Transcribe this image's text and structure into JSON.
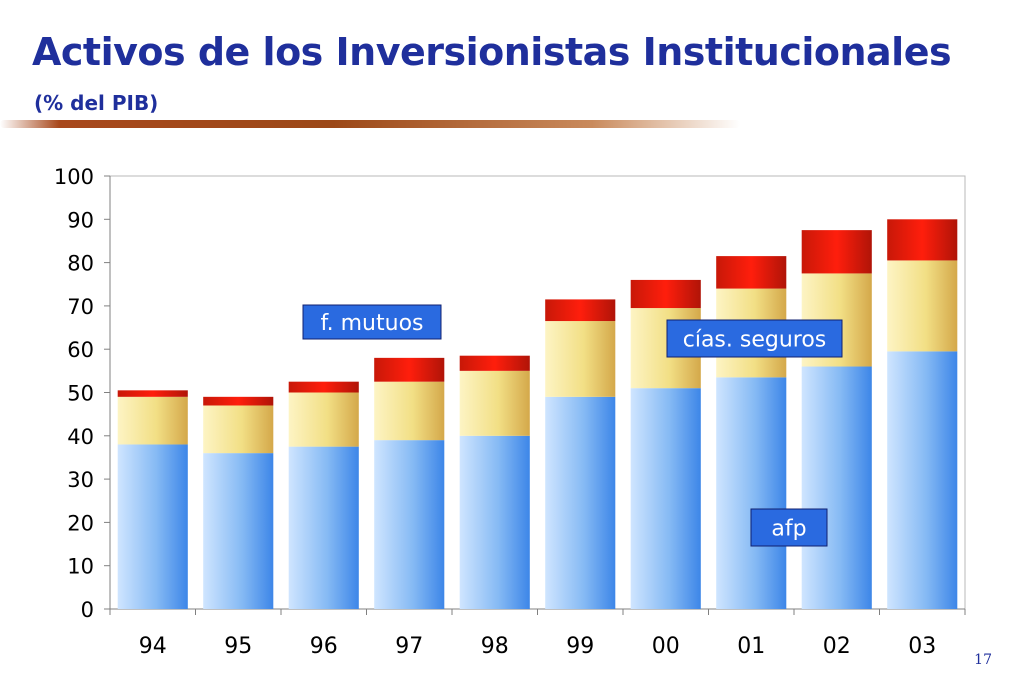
{
  "slide": {
    "title": "Activos de los Inversionistas Institucionales",
    "subtitle": "(% del PIB)",
    "page_number": "17"
  },
  "chart_data": {
    "type": "bar",
    "stacked": true,
    "categories": [
      "94",
      "95",
      "96",
      "97",
      "98",
      "99",
      "00",
      "01",
      "02",
      "03"
    ],
    "series": [
      {
        "name": "afp",
        "values": [
          38,
          36,
          37.5,
          39,
          40,
          49,
          51,
          53.5,
          56,
          59.5
        ],
        "color": "#7fb3f0"
      },
      {
        "name": "cías. seguros",
        "values": [
          11,
          11,
          12.5,
          13.5,
          15,
          17.5,
          18.5,
          20.5,
          21.5,
          21
        ],
        "color": "#f3e08c"
      },
      {
        "name": "f. mutuos",
        "values": [
          1.5,
          2,
          2.5,
          5.5,
          3.5,
          5,
          6.5,
          7.5,
          10,
          9.5
        ],
        "color": "#f01808"
      }
    ],
    "ylim": [
      0,
      100
    ],
    "yticks": [
      0,
      10,
      20,
      30,
      40,
      50,
      60,
      70,
      80,
      90,
      100
    ],
    "grid": false,
    "legend": "inline labels",
    "label_box_color": "#2a6ae0"
  }
}
